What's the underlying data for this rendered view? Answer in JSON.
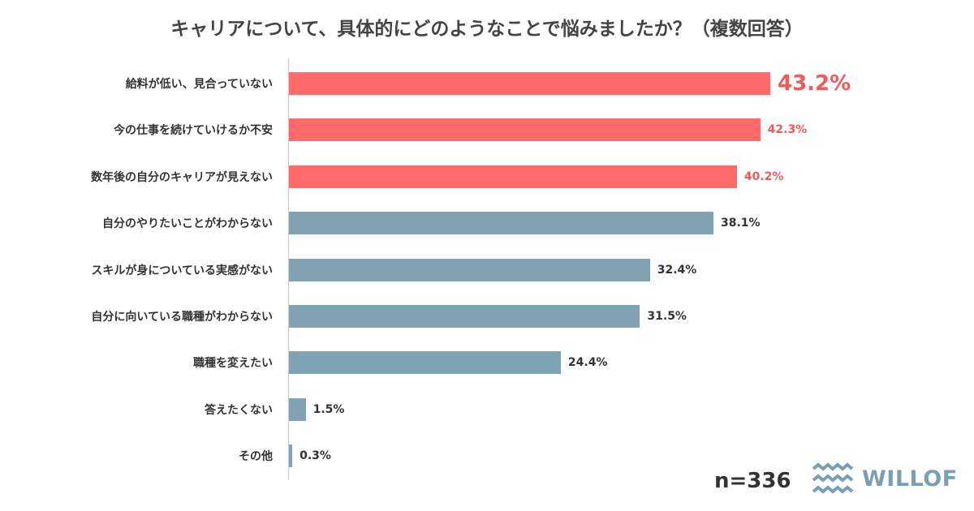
{
  "chart_data": {
    "type": "bar",
    "orientation": "horizontal",
    "title": "キャリアについて、具体的にどのようなことで悩みましたか？（複数回答）",
    "categories": [
      "給料が低い、見合っていない",
      "今の仕事を続けていけるか不安",
      "数年後の自分のキャリアが見えない",
      "自分のやりたいことがわからない",
      "スキルが身についている実感がない",
      "自分に向いている職種がわからない",
      "職種を変えたい",
      "答えたくない",
      "その他"
    ],
    "values": [
      43.2,
      42.3,
      40.2,
      38.1,
      32.4,
      31.5,
      24.4,
      1.5,
      0.3
    ],
    "value_labels": [
      "43.2%",
      "42.3%",
      "40.2%",
      "38.1%",
      "32.4%",
      "31.5%",
      "24.4%",
      "1.5%",
      "0.3%"
    ],
    "highlight_count": 3,
    "xlim": [
      0,
      43.2
    ],
    "grid": false,
    "colors": {
      "highlight": "#ff6b6b",
      "normal": "#80a2b3",
      "highlight_text": "#f05a5a",
      "normal_text": "#333333"
    }
  },
  "note": "n=336",
  "logo": "WILLOF"
}
